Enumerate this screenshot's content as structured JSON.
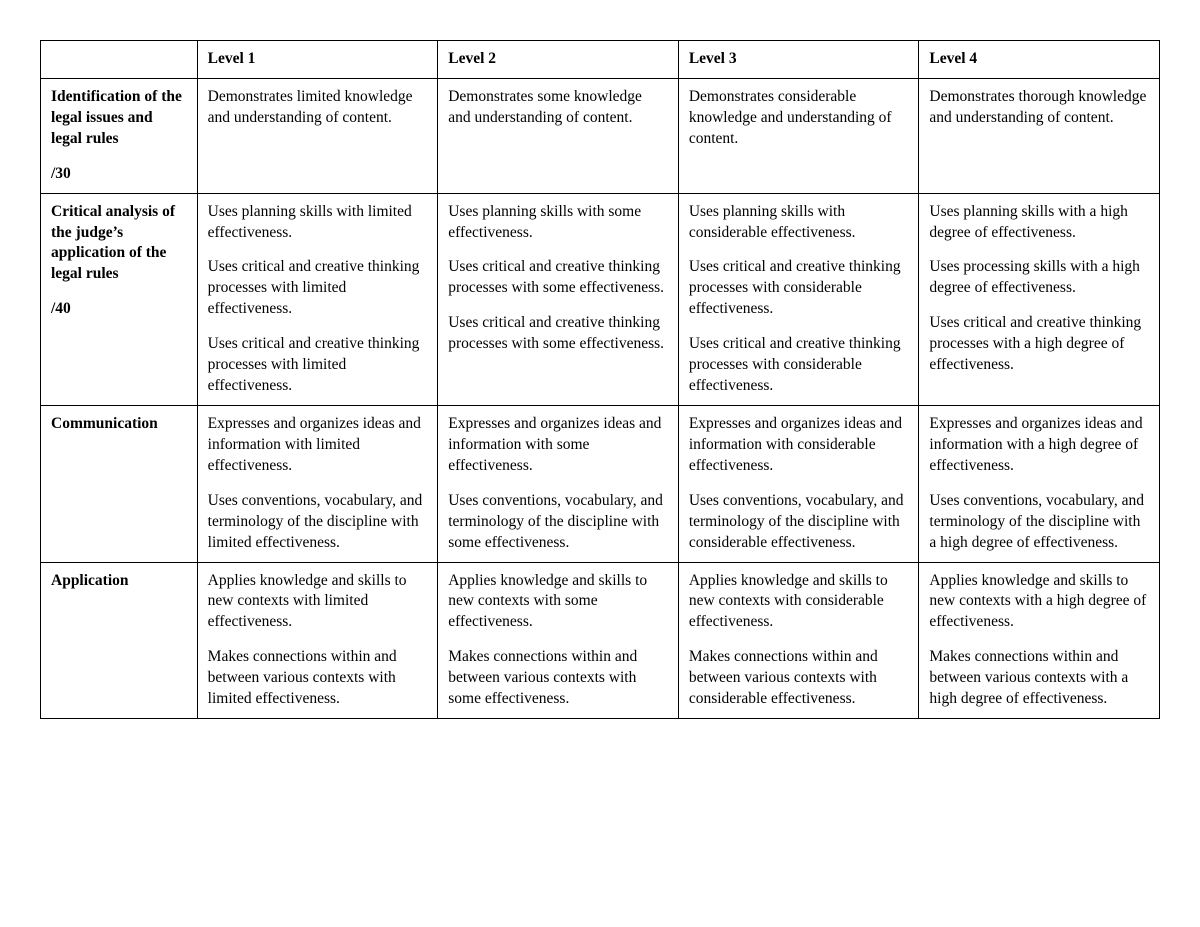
{
  "table": {
    "border_color": "#000000",
    "background_color": "#ffffff",
    "text_color": "#000000",
    "font_family": "Georgia, serif",
    "font_size_pt": 12,
    "columns": [
      {
        "key": "category",
        "header": "",
        "width_pct": 14
      },
      {
        "key": "level1",
        "header": "Level 1",
        "width_pct": 21.5
      },
      {
        "key": "level2",
        "header": "Level 2",
        "width_pct": 21.5
      },
      {
        "key": "level3",
        "header": "Level 3",
        "width_pct": 21.5
      },
      {
        "key": "level4",
        "header": "Level 4",
        "width_pct": 21.5
      }
    ],
    "rows": [
      {
        "category": "Identification of the legal issues and legal rules",
        "score": "/30",
        "level1": [
          "Demonstrates limited knowledge and understanding of content."
        ],
        "level2": [
          "Demonstrates some knowledge and understanding of content."
        ],
        "level3": [
          "Demonstrates considerable knowledge and understanding of content."
        ],
        "level4": [
          "Demonstrates thorough knowledge and understanding of content."
        ]
      },
      {
        "category": "Critical analysis of the judge’s application of the legal rules",
        "score": "/40",
        "level1": [
          "Uses planning skills with limited effectiveness.",
          "Uses critical and creative thinking processes with limited effectiveness.",
          "Uses critical and creative thinking processes with limited effectiveness."
        ],
        "level2": [
          "Uses planning skills with some  effectiveness.",
          "Uses critical and creative thinking processes with some effectiveness.",
          "Uses critical and creative thinking processes with some effectiveness."
        ],
        "level3": [
          "Uses planning skills with considerable effectiveness.",
          "Uses critical and creative thinking processes with considerable effectiveness.",
          "Uses critical and creative thinking processes with considerable effectiveness."
        ],
        "level4": [
          "Uses planning skills with a high degree of  effectiveness.",
          "Uses processing skills with a high degree of effectiveness.",
          "Uses critical and creative thinking processes with a high degree of effectiveness."
        ]
      },
      {
        "category": "Communication",
        "score": "",
        "level1": [
          "Expresses and organizes ideas and information with limited effectiveness.",
          "Uses conventions, vocabulary, and terminology of the discipline with limited effectiveness."
        ],
        "level2": [
          "Expresses and organizes ideas and information with some effectiveness.",
          "Uses conventions, vocabulary, and terminology of the discipline with some effectiveness."
        ],
        "level3": [
          "Expresses and organizes ideas and information with considerable effectiveness.",
          "Uses conventions, vocabulary, and terminology of the discipline with considerable effectiveness."
        ],
        "level4": [
          "Expresses and organizes ideas and information with a high degree of effectiveness.",
          "Uses conventions, vocabulary, and terminology of the discipline with a high degree of effectiveness."
        ]
      },
      {
        "category": "Application",
        "score": "",
        "level1": [
          "Applies knowledge and skills to new contexts with limited effectiveness.",
          "Makes connections within and between various contexts with limited effectiveness."
        ],
        "level2": [
          "Applies knowledge and skills to new contexts with some effectiveness.",
          "Makes connections within and between various contexts with some effectiveness."
        ],
        "level3": [
          "Applies knowledge and skills to new contexts with considerable effectiveness.",
          "Makes connections within and between various contexts with considerable effectiveness."
        ],
        "level4": [
          "Applies knowledge and skills to new contexts with a high degree of effectiveness.",
          "Makes connections within and between various contexts with a high degree of effectiveness."
        ]
      }
    ]
  }
}
